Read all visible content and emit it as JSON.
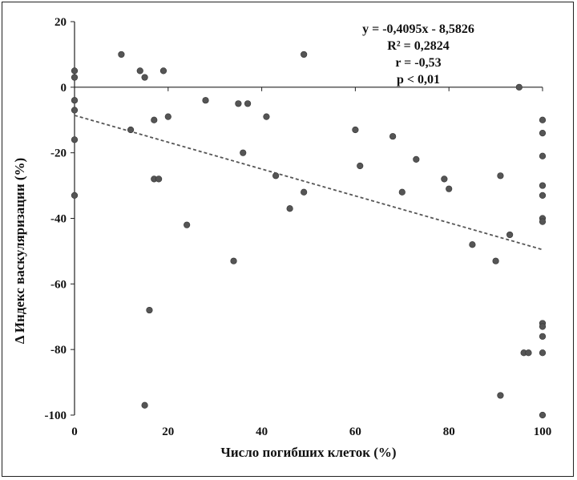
{
  "chart_data": {
    "type": "scatter",
    "xlabel": "Число погибших клеток (%)",
    "ylabel": "Δ Индекс васкуляризации (%)",
    "xlim": [
      0,
      100
    ],
    "ylim": [
      -100,
      20
    ],
    "x_ticks": [
      "0",
      "20",
      "40",
      "60",
      "80",
      "100"
    ],
    "y_ticks": [
      "20",
      "0",
      "-20",
      "-40",
      "-60",
      "-80",
      "-100"
    ],
    "grid": false,
    "marker_color": "#555555",
    "trendline": {
      "slope": -0.4095,
      "intercept": -8.5826,
      "color": "#555555",
      "style": "dashed"
    },
    "annotations": [
      "y = -0,4095x - 8,5826",
      "R² = 0,2824",
      "r = -0,53",
      "p < 0,01"
    ],
    "points": [
      {
        "x": 0,
        "y": 5
      },
      {
        "x": 0,
        "y": 3
      },
      {
        "x": 0,
        "y": -4
      },
      {
        "x": 0,
        "y": -7
      },
      {
        "x": 0,
        "y": -16
      },
      {
        "x": 0,
        "y": -33
      },
      {
        "x": 10,
        "y": 10
      },
      {
        "x": 12,
        "y": -13
      },
      {
        "x": 14,
        "y": 5
      },
      {
        "x": 15,
        "y": 3
      },
      {
        "x": 15,
        "y": -97
      },
      {
        "x": 16,
        "y": -68
      },
      {
        "x": 17,
        "y": -10
      },
      {
        "x": 17,
        "y": -28
      },
      {
        "x": 18,
        "y": -28
      },
      {
        "x": 19,
        "y": 5
      },
      {
        "x": 20,
        "y": -9
      },
      {
        "x": 24,
        "y": -42
      },
      {
        "x": 28,
        "y": -4
      },
      {
        "x": 34,
        "y": -53
      },
      {
        "x": 35,
        "y": -5
      },
      {
        "x": 36,
        "y": -20
      },
      {
        "x": 37,
        "y": -5
      },
      {
        "x": 41,
        "y": -9
      },
      {
        "x": 43,
        "y": -27
      },
      {
        "x": 46,
        "y": -37
      },
      {
        "x": 49,
        "y": 10
      },
      {
        "x": 49,
        "y": -32
      },
      {
        "x": 60,
        "y": -13
      },
      {
        "x": 61,
        "y": -24
      },
      {
        "x": 68,
        "y": -15
      },
      {
        "x": 70,
        "y": -32
      },
      {
        "x": 73,
        "y": -22
      },
      {
        "x": 79,
        "y": -28
      },
      {
        "x": 80,
        "y": -31
      },
      {
        "x": 85,
        "y": -48
      },
      {
        "x": 90,
        "y": -53
      },
      {
        "x": 91,
        "y": -27
      },
      {
        "x": 91,
        "y": -94
      },
      {
        "x": 93,
        "y": -45
      },
      {
        "x": 95,
        "y": 0
      },
      {
        "x": 96,
        "y": -81
      },
      {
        "x": 97,
        "y": -81
      },
      {
        "x": 100,
        "y": -10
      },
      {
        "x": 100,
        "y": -14
      },
      {
        "x": 100,
        "y": -21
      },
      {
        "x": 100,
        "y": -30
      },
      {
        "x": 100,
        "y": -33
      },
      {
        "x": 100,
        "y": -40
      },
      {
        "x": 100,
        "y": -41
      },
      {
        "x": 100,
        "y": -72
      },
      {
        "x": 100,
        "y": -73
      },
      {
        "x": 100,
        "y": -76
      },
      {
        "x": 100,
        "y": -81
      },
      {
        "x": 100,
        "y": -100
      }
    ]
  }
}
